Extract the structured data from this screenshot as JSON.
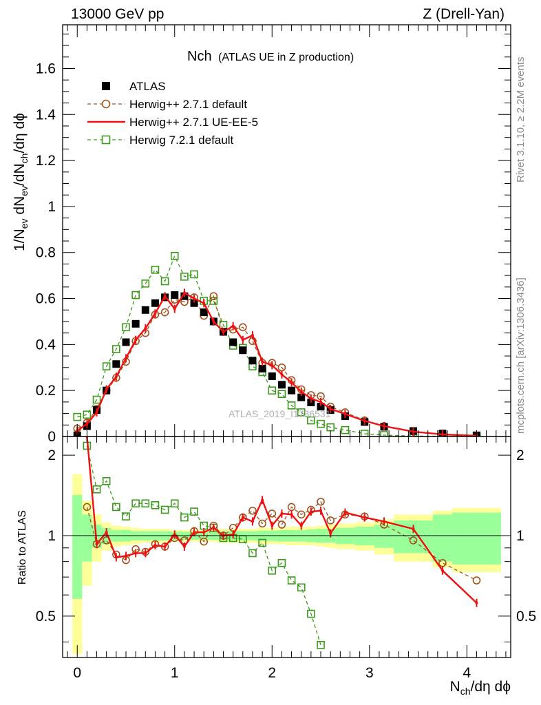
{
  "header": {
    "energy_label": "13000 GeV pp",
    "process_label": "Z (Drell-Yan)"
  },
  "side_labels": {
    "rivet": "Rivet 3.1.10, ≥ 2.2M events",
    "mcplots": "mcplots.cern.ch [arXiv:1306.3436]"
  },
  "watermark": "ATLAS_2019_I1736531",
  "colors": {
    "atlas": "#000000",
    "herwigpp_default": "#a0521d",
    "herwigpp_ueee5": "#ee1111",
    "herwig7_default": "#3a9a1a",
    "band_inner": "#99ff99",
    "band_outer": "#ffff99"
  },
  "chart_data": [
    {
      "type": "scatter",
      "panel": "main",
      "title_main": "Nch",
      "title_sub": "(ATLAS UE in Z production)",
      "ylabel": "1/N_ev dN_ev/dN_ch/dη dϕ",
      "xlabel": "",
      "xlim": [
        -0.15,
        4.45
      ],
      "ylim": [
        0,
        1.79
      ],
      "x_ticks": [
        0,
        1,
        2,
        3,
        4
      ],
      "y_ticks": [
        0,
        0.2,
        0.4,
        0.6,
        0.8,
        1,
        1.2,
        1.4,
        1.6
      ],
      "y_tick_labels": [
        "0",
        "0.2",
        "0.4",
        "0.6",
        "0.8",
        "1",
        "1.2",
        "1.4",
        "1.6"
      ],
      "legend_position": "top-left",
      "series": [
        {
          "name": "ATLAS",
          "style": "squares",
          "x": [
            0,
            0.1,
            0.2,
            0.3,
            0.4,
            0.5,
            0.6,
            0.7,
            0.8,
            0.9,
            1.0,
            1.1,
            1.2,
            1.3,
            1.4,
            1.5,
            1.6,
            1.7,
            1.8,
            1.9,
            2.0,
            2.1,
            2.2,
            2.3,
            2.4,
            2.5,
            2.6,
            2.75,
            2.95,
            3.15,
            3.45,
            3.75,
            4.1
          ],
          "y": [
            0.005,
            0.045,
            0.115,
            0.2,
            0.315,
            0.41,
            0.49,
            0.55,
            0.58,
            0.605,
            0.615,
            0.61,
            0.58,
            0.54,
            0.5,
            0.455,
            0.41,
            0.375,
            0.33,
            0.295,
            0.262,
            0.225,
            0.2,
            0.17,
            0.148,
            0.13,
            0.115,
            0.088,
            0.063,
            0.042,
            0.024,
            0.013,
            0.005
          ]
        },
        {
          "name": "Herwig++ 2.7.1 default",
          "style": "circles-dashed",
          "x": [
            0,
            0.1,
            0.2,
            0.3,
            0.4,
            0.5,
            0.6,
            0.7,
            0.8,
            0.9,
            1.0,
            1.1,
            1.2,
            1.3,
            1.4,
            1.5,
            1.6,
            1.7,
            1.8,
            1.9,
            2.0,
            2.1,
            2.2,
            2.3,
            2.4,
            2.5,
            2.6,
            2.75,
            2.95,
            3.15,
            3.45,
            3.75,
            4.1
          ],
          "y": [
            0.035,
            0.06,
            0.12,
            0.2,
            0.255,
            0.325,
            0.415,
            0.45,
            0.53,
            0.54,
            0.595,
            0.585,
            0.605,
            0.525,
            0.61,
            0.455,
            0.465,
            0.475,
            0.415,
            0.32,
            0.32,
            0.3,
            0.245,
            0.205,
            0.18,
            0.175,
            0.13,
            0.105,
            0.07,
            0.045,
            0.021,
            0.01,
            0.003
          ]
        },
        {
          "name": "Herwig++ 2.7.1 UE-EE-5",
          "style": "line",
          "x": [
            0,
            0.1,
            0.2,
            0.3,
            0.4,
            0.5,
            0.6,
            0.7,
            0.8,
            0.9,
            1.0,
            1.1,
            1.2,
            1.3,
            1.4,
            1.5,
            1.6,
            1.7,
            1.8,
            1.9,
            2.0,
            2.1,
            2.2,
            2.3,
            2.4,
            2.5,
            2.6,
            2.75,
            2.95,
            3.15,
            3.45,
            3.75,
            4.1
          ],
          "y": [
            0.025,
            0.055,
            0.105,
            0.205,
            0.26,
            0.34,
            0.42,
            0.47,
            0.535,
            0.61,
            0.555,
            0.625,
            0.6,
            0.58,
            0.5,
            0.455,
            0.48,
            0.42,
            0.44,
            0.325,
            0.31,
            0.27,
            0.235,
            0.195,
            0.165,
            0.15,
            0.12,
            0.098,
            0.068,
            0.045,
            0.021,
            0.009,
            0.003
          ]
        },
        {
          "name": "Herwig 7.2.1 default",
          "style": "open-squares-dashed",
          "x": [
            0,
            0.1,
            0.2,
            0.3,
            0.4,
            0.5,
            0.6,
            0.7,
            0.8,
            0.9,
            1.0,
            1.1,
            1.2,
            1.3,
            1.4,
            1.5,
            1.6,
            1.7,
            1.8,
            1.9,
            2.0,
            2.1,
            2.2,
            2.3,
            2.4,
            2.5,
            2.6,
            2.75,
            2.95,
            3.15,
            3.45,
            3.75,
            4.1
          ],
          "y": [
            0.085,
            0.095,
            0.16,
            0.305,
            0.38,
            0.475,
            0.615,
            0.665,
            0.725,
            0.675,
            0.785,
            0.695,
            0.705,
            0.59,
            0.59,
            0.485,
            0.395,
            0.385,
            0.305,
            0.28,
            0.2,
            0.185,
            0.135,
            0.105,
            0.07,
            0.055,
            0.04,
            0.028,
            0.012,
            0.006,
            0.002,
            0.001,
            0.0
          ]
        }
      ]
    },
    {
      "type": "scatter",
      "panel": "ratio",
      "ylabel": "Ratio to ATLAS",
      "xlabel": "N_ch/dη dϕ",
      "xlim": [
        -0.15,
        4.45
      ],
      "ylim": [
        0.35,
        2.35
      ],
      "x_ticks": [
        0,
        1,
        2,
        3,
        4
      ],
      "x_tick_labels": [
        "0",
        "1",
        "2",
        "3",
        "4"
      ],
      "y_ticks": [
        0.5,
        1,
        2
      ],
      "y_tick_labels": [
        "0.5",
        "1",
        "2"
      ],
      "bands": {
        "x_edges": [
          -0.05,
          0.05,
          0.15,
          0.25,
          0.35,
          0.45,
          0.55,
          0.65,
          0.75,
          0.85,
          0.95,
          1.05,
          1.15,
          1.25,
          1.35,
          1.45,
          1.55,
          1.65,
          1.75,
          1.85,
          1.95,
          2.05,
          2.15,
          2.25,
          2.35,
          2.45,
          2.55,
          2.65,
          2.85,
          3.05,
          3.25,
          3.65,
          3.85,
          4.35
        ],
        "inner_half": [
          0.42,
          0.2,
          0.1,
          0.07,
          0.05,
          0.05,
          0.04,
          0.04,
          0.04,
          0.04,
          0.035,
          0.035,
          0.035,
          0.035,
          0.035,
          0.04,
          0.04,
          0.04,
          0.04,
          0.045,
          0.045,
          0.05,
          0.05,
          0.05,
          0.055,
          0.06,
          0.06,
          0.07,
          0.08,
          0.1,
          0.14,
          0.2,
          0.22,
          0.24
        ],
        "outer_half": [
          0.7,
          0.35,
          0.2,
          0.12,
          0.09,
          0.08,
          0.07,
          0.06,
          0.06,
          0.06,
          0.05,
          0.05,
          0.05,
          0.05,
          0.05,
          0.06,
          0.06,
          0.06,
          0.06,
          0.07,
          0.07,
          0.07,
          0.08,
          0.08,
          0.08,
          0.09,
          0.1,
          0.11,
          0.12,
          0.15,
          0.2,
          0.24,
          0.27,
          0.3
        ]
      },
      "series": [
        {
          "name": "Herwig++ 2.7.1 default",
          "x": [
            0.1,
            0.2,
            0.3,
            0.4,
            0.5,
            0.6,
            0.7,
            0.8,
            0.9,
            1.0,
            1.1,
            1.2,
            1.3,
            1.4,
            1.5,
            1.6,
            1.7,
            1.8,
            1.9,
            2.0,
            2.1,
            2.2,
            2.3,
            2.4,
            2.5,
            2.6,
            2.75,
            2.95,
            3.15,
            3.45,
            3.75,
            4.1
          ],
          "y": [
            1.28,
            0.93,
            0.96,
            0.85,
            0.81,
            0.89,
            0.87,
            0.93,
            0.91,
            0.98,
            0.96,
            1.04,
            0.95,
            1.09,
            1.0,
            1.07,
            1.17,
            1.24,
            1.11,
            1.21,
            1.1,
            1.28,
            1.2,
            1.25,
            1.34,
            1.14,
            1.2,
            1.18,
            1.1,
            0.96,
            0.79,
            0.68
          ]
        },
        {
          "name": "Herwig++ 2.7.1 UE-EE-5",
          "x": [
            0.1,
            0.2,
            0.3,
            0.4,
            0.5,
            0.6,
            0.7,
            0.8,
            0.9,
            1.0,
            1.1,
            1.2,
            1.3,
            1.4,
            1.5,
            1.6,
            1.7,
            1.8,
            1.9,
            2.0,
            2.1,
            2.2,
            2.3,
            2.4,
            2.5,
            2.6,
            2.75,
            2.95,
            3.15,
            3.45,
            3.75,
            4.1
          ],
          "y": [
            2.35,
            0.93,
            1.03,
            0.83,
            0.84,
            0.86,
            0.86,
            0.92,
            0.91,
            1.01,
            0.91,
            1.03,
            1.03,
            1.07,
            1.0,
            1.01,
            1.17,
            1.13,
            1.36,
            1.09,
            1.21,
            1.2,
            1.09,
            1.23,
            1.24,
            1.02,
            1.22,
            1.17,
            1.13,
            1.06,
            0.74,
            0.56
          ]
        },
        {
          "name": "Herwig 7.2.1 default",
          "x": [
            0.1,
            0.2,
            0.3,
            0.4,
            0.5,
            0.6,
            0.7,
            0.8,
            0.9,
            1.0,
            1.1,
            1.2,
            1.3,
            1.4,
            1.5,
            1.6,
            1.7,
            1.8,
            1.9,
            2.0,
            2.1,
            2.2,
            2.3,
            2.4,
            2.5
          ],
          "y": [
            2.17,
            1.49,
            1.6,
            1.28,
            1.18,
            1.32,
            1.32,
            1.3,
            1.25,
            1.32,
            1.17,
            1.23,
            1.09,
            1.07,
            0.98,
            0.98,
            0.97,
            0.86,
            0.94,
            0.74,
            0.79,
            0.68,
            0.64,
            0.51,
            0.39
          ]
        }
      ]
    }
  ]
}
